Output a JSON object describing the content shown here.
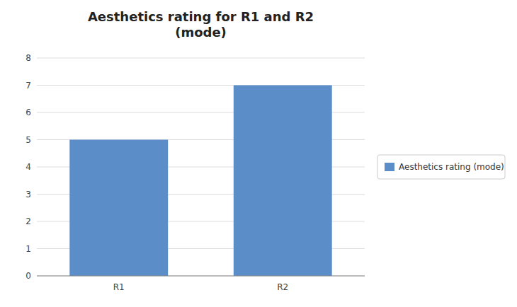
{
  "chart_data": {
    "type": "bar",
    "title": "Aesthetics rating for R1 and R2\n(mode)",
    "categories": [
      "R1",
      "R2"
    ],
    "series": [
      {
        "name": "Aesthetics rating (mode)",
        "color": "#5B8DC8",
        "values": [
          5,
          7
        ]
      }
    ],
    "ylim": [
      0,
      8
    ],
    "yticks": [
      0,
      1,
      2,
      3,
      4,
      5,
      6,
      7,
      8
    ],
    "grid": true,
    "legend": "right"
  }
}
